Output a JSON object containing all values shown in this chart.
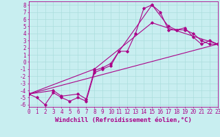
{
  "background_color": "#c8eef0",
  "grid_color": "#aadddd",
  "line_color": "#aa0088",
  "marker": "D",
  "markersize": 1.8,
  "linewidth": 0.8,
  "xlabel": "Windchill (Refroidissement éolien,°C)",
  "xlabel_fontsize": 6.5,
  "xtick_fontsize": 5.5,
  "ytick_fontsize": 5.5,
  "xlim": [
    0,
    23
  ],
  "ylim": [
    -6.3,
    8.5
  ],
  "xticks": [
    0,
    1,
    2,
    3,
    4,
    5,
    6,
    7,
    8,
    9,
    10,
    11,
    12,
    13,
    14,
    15,
    16,
    17,
    18,
    19,
    20,
    21,
    22,
    23
  ],
  "yticks": [
    -6,
    -5,
    -4,
    -3,
    -2,
    -1,
    0,
    1,
    2,
    3,
    4,
    5,
    6,
    7,
    8
  ],
  "series1": [
    [
      0,
      -4.5
    ],
    [
      1,
      -5.0
    ],
    [
      2,
      -6.0
    ],
    [
      3,
      -4.3
    ],
    [
      4,
      -5.0
    ],
    [
      5,
      -5.5
    ],
    [
      6,
      -5.0
    ],
    [
      7,
      -5.5
    ],
    [
      8,
      -1.5
    ],
    [
      9,
      -1.0
    ],
    [
      10,
      -0.5
    ],
    [
      11,
      1.5
    ],
    [
      12,
      1.5
    ],
    [
      13,
      4.0
    ],
    [
      14,
      7.5
    ],
    [
      15,
      8.0
    ],
    [
      16,
      7.0
    ],
    [
      17,
      4.5
    ],
    [
      18,
      4.5
    ],
    [
      19,
      4.5
    ],
    [
      20,
      4.0
    ],
    [
      21,
      3.0
    ],
    [
      22,
      2.5
    ],
    [
      23,
      2.5
    ]
  ],
  "series2": [
    [
      0,
      -4.5
    ],
    [
      3,
      -4.0
    ],
    [
      4,
      -4.8
    ],
    [
      6,
      -4.5
    ],
    [
      7,
      -5.2
    ],
    [
      8,
      -1.2
    ],
    [
      9,
      -0.8
    ],
    [
      10,
      -0.2
    ],
    [
      11,
      1.5
    ],
    [
      15,
      8.0
    ],
    [
      17,
      5.0
    ],
    [
      18,
      4.5
    ],
    [
      19,
      4.8
    ],
    [
      20,
      3.5
    ],
    [
      21,
      2.5
    ],
    [
      22,
      3.0
    ],
    [
      23,
      2.5
    ]
  ],
  "series3": [
    [
      0,
      -4.5
    ],
    [
      8,
      -1.0
    ],
    [
      15,
      5.5
    ],
    [
      23,
      2.5
    ]
  ],
  "series4": [
    [
      0,
      -4.5
    ],
    [
      23,
      2.5
    ]
  ]
}
